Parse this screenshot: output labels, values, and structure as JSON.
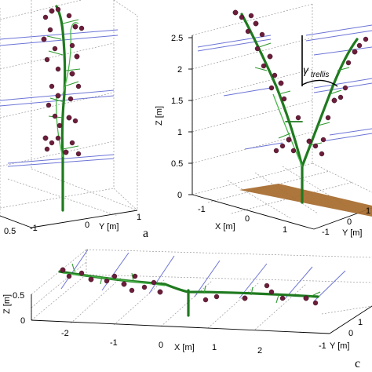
{
  "panel_a": {
    "label": "a",
    "y_axis_label": "Y [m]",
    "y_ticks": [
      "-1",
      "0",
      "1"
    ],
    "x_ticks": [
      "0.5"
    ]
  },
  "panel_b": {
    "z_axis_label": "Z [m]",
    "z_ticks": [
      "2.5",
      "2",
      "1.5",
      "1",
      "0.5",
      "0"
    ],
    "x_axis_label": "X [m]",
    "x_ticks": [
      "-1",
      "0",
      "1"
    ],
    "y_axis_label": "Y [m]",
    "y_ticks": [
      "-1",
      "0",
      "1"
    ],
    "angle_label": "γ",
    "angle_subscript": "trellis"
  },
  "panel_c": {
    "label": "c",
    "z_axis_label": "Z [m]",
    "z_ticks": [
      "0.5",
      "0"
    ],
    "x_axis_label": "X [m]",
    "x_ticks": [
      "-2",
      "-1",
      "0",
      "1",
      "2"
    ],
    "y_axis_label": "Y [m]",
    "y_ticks": [
      "1",
      "0",
      "-1"
    ]
  },
  "colors": {
    "stem": "#1f7a1f",
    "leaf": "#2f9a2f",
    "fruit": "#6b1d3a",
    "wire": "#6c74d6",
    "ground": "#a66a2c"
  },
  "icons": [
    "tomato-plant-single-stem",
    "tomato-plant-v-trellis",
    "tomato-plant-horizontal"
  ]
}
